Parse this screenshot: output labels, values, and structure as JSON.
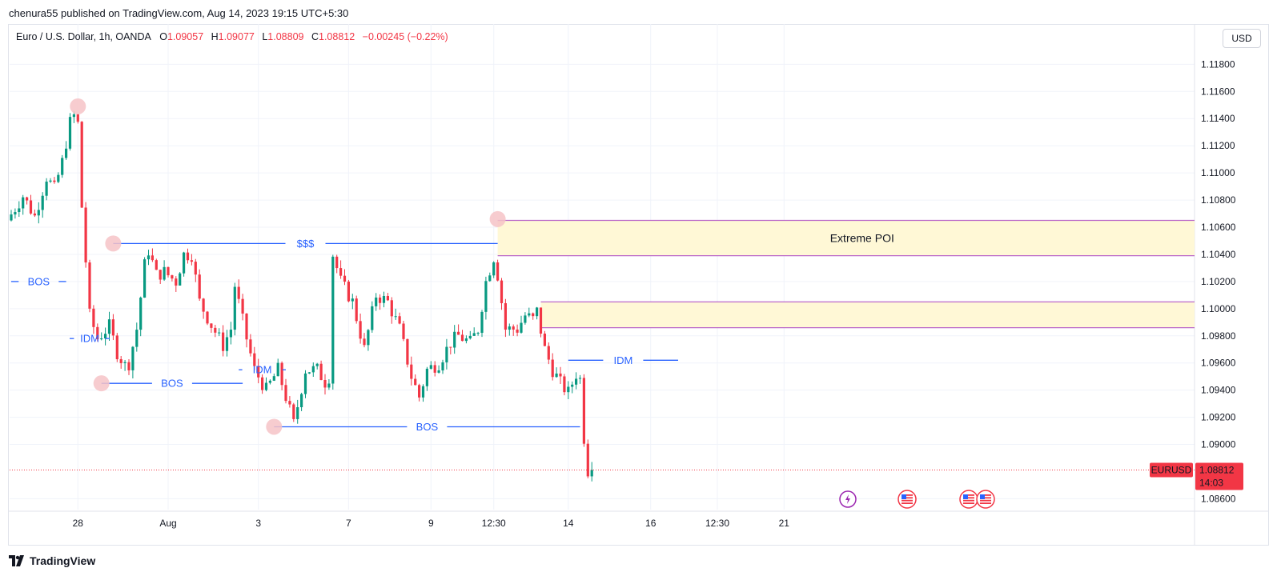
{
  "header": {
    "published_line": "chenura55 published on TradingView.com, Aug 14, 2023 19:15 UTC+5:30"
  },
  "legend": {
    "symbol": "Euro / U.S. Dollar, 1h, OANDA",
    "open_label": "O",
    "open": "1.09057",
    "high_label": "H",
    "high": "1.09077",
    "low_label": "L",
    "low": "1.08809",
    "close_label": "C",
    "close": "1.08812",
    "change": "−0.00245 (−0.22%)"
  },
  "currency_button": "USD",
  "footer": {
    "brand": "TradingView"
  },
  "colors": {
    "up": "#089981",
    "down": "#f23645",
    "structure_line": "#2962ff",
    "zone_fill": "#fff8d6",
    "zone_border": "#ba68c8",
    "swing_marker": "#f6c3c7",
    "price_tag": "#f23645"
  },
  "price_tag": {
    "symbol": "EURUSD",
    "price": "1.08812",
    "countdown": "14:03"
  },
  "event_icons": [
    "lightning-icon",
    "us-flag-icon",
    "us-flag-icon",
    "us-flag-icon"
  ],
  "chart_data": {
    "type": "candlestick",
    "title": "Euro / U.S. Dollar, 1h, OANDA",
    "ylim": [
      1.0852,
      1.1192
    ],
    "y_ticks": [
      "1.11800",
      "1.11600",
      "1.11400",
      "1.11200",
      "1.11000",
      "1.10800",
      "1.10600",
      "1.10400",
      "1.10200",
      "1.10000",
      "1.09800",
      "1.09600",
      "1.09400",
      "1.09200",
      "1.09000",
      "1.08600"
    ],
    "y_tick_values": [
      1.118,
      1.116,
      1.114,
      1.112,
      1.11,
      1.108,
      1.106,
      1.104,
      1.102,
      1.1,
      1.098,
      1.096,
      1.094,
      1.092,
      1.09,
      1.086
    ],
    "x_ticks": [
      "28",
      "Aug",
      "3",
      "7",
      "9",
      "12:30",
      "14",
      "16",
      "12:30",
      "21"
    ],
    "x_tick_bars": [
      17,
      40,
      63,
      86,
      107,
      123,
      142,
      163,
      180,
      197
    ],
    "bar_count": 210,
    "last_price": 1.08812,
    "price_path": [
      [
        0,
        1.1065
      ],
      [
        4,
        1.1083
      ],
      [
        7,
        1.1068
      ],
      [
        10,
        1.1097
      ],
      [
        12,
        1.1088
      ],
      [
        14,
        1.1108
      ],
      [
        16,
        1.1137
      ],
      [
        17,
        1.1142
      ],
      [
        18,
        1.1136
      ],
      [
        19,
        1.1075
      ],
      [
        20,
        1.1035
      ],
      [
        21,
        1.0995
      ],
      [
        23,
        1.0978
      ],
      [
        26,
        1.0987
      ],
      [
        28,
        1.0968
      ],
      [
        30,
        1.0958
      ],
      [
        31,
        1.096
      ],
      [
        33,
        1.0985
      ],
      [
        35,
        1.1032
      ],
      [
        36,
        1.1043
      ],
      [
        38,
        1.1025
      ],
      [
        40,
        1.1027
      ],
      [
        43,
        1.102
      ],
      [
        45,
        1.104
      ],
      [
        47,
        1.104
      ],
      [
        49,
        1.1005
      ],
      [
        52,
        1.0988
      ],
      [
        55,
        1.0973
      ],
      [
        57,
        1.0985
      ],
      [
        58,
        1.1017
      ],
      [
        61,
        1.0978
      ],
      [
        63,
        1.0955
      ],
      [
        66,
        1.094
      ],
      [
        69,
        1.0955
      ],
      [
        71,
        1.0935
      ],
      [
        73,
        1.0915
      ],
      [
        76,
        1.0955
      ],
      [
        79,
        1.0955
      ],
      [
        81,
        1.0946
      ],
      [
        82,
        1.095
      ],
      [
        83,
        1.104
      ],
      [
        85,
        1.102
      ],
      [
        88,
        1.1005
      ],
      [
        91,
        1.097
      ],
      [
        94,
        1.101
      ],
      [
        97,
        1.1005
      ],
      [
        100,
        1.0985
      ],
      [
        103,
        1.095
      ],
      [
        105,
        1.0935
      ],
      [
        107,
        1.0955
      ],
      [
        110,
        1.096
      ],
      [
        113,
        1.0975
      ],
      [
        115,
        1.098
      ],
      [
        118,
        1.0975
      ],
      [
        120,
        1.0985
      ],
      [
        122,
        1.102
      ],
      [
        124,
        1.1038
      ],
      [
        125,
        1.1025
      ],
      [
        127,
        1.0985
      ],
      [
        130,
        1.0985
      ],
      [
        132,
        1.0995
      ],
      [
        134,
        1.0992
      ],
      [
        135,
        1.0998
      ],
      [
        137,
        1.097
      ],
      [
        139,
        1.0955
      ],
      [
        141,
        1.0945
      ],
      [
        143,
        1.0938
      ],
      [
        145,
        1.0952
      ],
      [
        146,
        1.0948
      ],
      [
        147,
        1.0905
      ],
      [
        148,
        1.0881
      ]
    ],
    "horizontal_levels": [
      {
        "name": "BOS",
        "price": 1.102,
        "from": 0,
        "to": 14
      },
      {
        "name": "IDM",
        "price": 1.0978,
        "from": 16,
        "to": 24
      },
      {
        "name": "$$$",
        "price": 1.1048,
        "from": 26,
        "to": 124
      },
      {
        "name": "BOS",
        "price": 1.0945,
        "from": 23,
        "to": 59
      },
      {
        "name": "IDM",
        "price": 1.0955,
        "from": 58,
        "to": 70
      },
      {
        "name": "BOS",
        "price": 1.0913,
        "from": 67,
        "to": 145
      },
      {
        "name": "IDM",
        "price": 1.0962,
        "from": 142,
        "to": 170
      }
    ],
    "zones": [
      {
        "label": "Extreme POI",
        "top": 1.1065,
        "bottom": 1.1039,
        "from": 124
      },
      {
        "label": "",
        "top": 1.1005,
        "bottom": 1.0986,
        "from": 135
      }
    ],
    "swing_points": [
      {
        "bar": 17,
        "price": 1.1149
      },
      {
        "bar": 26,
        "price": 1.1048
      },
      {
        "bar": 23,
        "price": 1.0945
      },
      {
        "bar": 67,
        "price": 1.0913
      },
      {
        "bar": 124,
        "price": 1.1066
      }
    ]
  }
}
